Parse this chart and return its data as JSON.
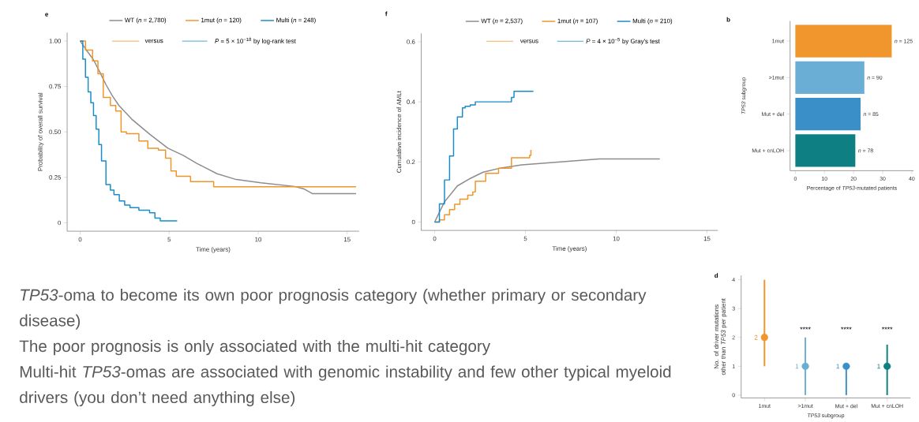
{
  "chart_data": [
    {
      "type": "step",
      "title": "e",
      "xlabel": "Time (years)",
      "ylabel": "Probability of overall survival",
      "legend": "top",
      "xlim": [
        -0.73,
        15.67
      ],
      "ylim": [
        -0.046,
        1.046
      ],
      "xticks": [
        0,
        5,
        10,
        15
      ],
      "yticks": [
        0,
        {
          "value": 0.25,
          "label": "0.25"
        },
        {
          "value": 0.5,
          "label": "0.50"
        },
        {
          "value": 0.75,
          "label": "0.75"
        },
        {
          "value": 1,
          "label": "1.00"
        }
      ],
      "annotations": [
        "versus",
        "*P* = 5 × 10$^{−18}$ by log-rank test"
      ],
      "series": [
        {
          "name": "WT (*n* = 2,780)",
          "color": "#8c8c8c",
          "type": "line",
          "x": [
            0,
            0.35,
            0.73,
            1.1,
            1.45,
            1.8,
            2.18,
            2.9,
            3.92,
            4.93,
            5.8,
            6.53,
            7.69,
            8.7,
            10.16,
            12.05,
            12.6,
            13.06,
            15.5
          ],
          "values": [
            1.0,
            0.95,
            0.9,
            0.83,
            0.76,
            0.7,
            0.645,
            0.57,
            0.486,
            0.41,
            0.37,
            0.328,
            0.27,
            0.24,
            0.22,
            0.2,
            0.185,
            0.16,
            0.16
          ]
        },
        {
          "name": "1mut (*n* = 120)",
          "color": "#f0952a",
          "x": [
            0,
            0.3,
            0.7,
            1.0,
            1.3,
            1.7,
            2.0,
            2.3,
            2.6,
            3.3,
            3.8,
            4.4,
            4.8,
            5.1,
            5.4,
            6.2,
            7.5,
            15.5
          ],
          "values": [
            1.0,
            0.95,
            0.89,
            0.82,
            0.69,
            0.645,
            0.615,
            0.5,
            0.49,
            0.45,
            0.41,
            0.4,
            0.356,
            0.285,
            0.256,
            0.227,
            0.198,
            0.198
          ]
        },
        {
          "name": "Multi (*n* = 248)",
          "color": "#1a8cc8",
          "x": [
            0,
            0.15,
            0.3,
            0.45,
            0.6,
            0.75,
            0.9,
            1.05,
            1.2,
            1.45,
            1.7,
            1.9,
            2.2,
            2.5,
            2.8,
            3.3,
            3.9,
            4.2,
            4.5,
            5.45
          ],
          "values": [
            1.0,
            0.9,
            0.8,
            0.72,
            0.66,
            0.59,
            0.515,
            0.43,
            0.34,
            0.21,
            0.18,
            0.155,
            0.12,
            0.098,
            0.083,
            0.069,
            0.055,
            0.026,
            0.011,
            0.011
          ]
        }
      ]
    },
    {
      "type": "step",
      "title": "f",
      "xlabel": "Time (years)",
      "ylabel": "Cumulative incidence of AMLt",
      "legend": "top",
      "xlim": [
        -0.74,
        15.6
      ],
      "ylim": [
        -0.028,
        0.628
      ],
      "xticks": [
        0,
        5,
        10,
        15
      ],
      "yticks": [
        0,
        0.2,
        0.4,
        0.6
      ],
      "annotations": [
        "versus",
        "*P* = 4 × 10$^{−5}$ by Gray's test"
      ],
      "series": [
        {
          "name": "WT (*n* = 2,537)",
          "color": "#8c8c8c",
          "type": "line",
          "x": [
            0,
            0.54,
            1.25,
            1.96,
            2.67,
            3.66,
            4.8,
            6.93,
            9.06,
            12.4
          ],
          "values": [
            0,
            0.067,
            0.12,
            0.145,
            0.166,
            0.18,
            0.19,
            0.2,
            0.21,
            0.21
          ]
        },
        {
          "name": "1mut (*n* = 107)",
          "color": "#f0952a",
          "x": [
            0,
            0.26,
            0.54,
            0.82,
            1.1,
            1.39,
            1.82,
            2.1,
            2.24,
            2.81,
            3.52,
            4.23,
            5.23,
            5.3
          ],
          "values": [
            0,
            0.007,
            0.024,
            0.041,
            0.059,
            0.076,
            0.089,
            0.1,
            0.136,
            0.162,
            0.179,
            0.214,
            0.222,
            0.24
          ]
        },
        {
          "name": "Multi (*n* = 210)",
          "color": "#1a8cc8",
          "x": [
            0,
            0.26,
            0.54,
            0.82,
            1.04,
            1.25,
            1.53,
            1.68,
            1.96,
            2.24,
            4.09,
            4.23,
            4.37,
            5.44
          ],
          "values": [
            0,
            0.06,
            0.14,
            0.22,
            0.31,
            0.35,
            0.38,
            0.385,
            0.39,
            0.4,
            0.4,
            0.415,
            0.435,
            0.435
          ]
        }
      ]
    },
    {
      "type": "bar",
      "title": "b",
      "orientation": "horizontal",
      "xlabel": "Percentage of *TP53*-mutated patients",
      "ylabel": "*TP53* subgroup",
      "categories": [
        "1mut",
        ">1mut",
        "Mut + del",
        "Mut + cnLOH"
      ],
      "values": [
        33.1,
        23.7,
        22.4,
        20.6
      ],
      "colors": [
        "#f0962c",
        "#6aaed6",
        "#3a8fc8",
        "#0e7f82"
      ],
      "annotations": [
        {
          "text": "*n* = 125",
          "x": 33.1,
          "y": "1mut"
        },
        {
          "text": "*n* = 90",
          "x": 23.7,
          "y": ">1mut"
        },
        {
          "text": "*n* = 85",
          "x": 22.4,
          "y": "Mut + del"
        },
        {
          "text": "*n* = 78",
          "x": 20.6,
          "y": "Mut + cnLOH"
        }
      ],
      "xlim": [
        -1.8,
        40.6
      ],
      "xticks": [
        0,
        10,
        20,
        30,
        40
      ]
    },
    {
      "type": "other",
      "annotations": [
        "*TP53*-oma to become its own poor prognosis category (whether primary or secondary disease)",
        "The poor prognosis is only associated with the multi-hit category",
        "Multi-hit *TP53*-omas are associated with genomic instability and few other typical myeloid drivers (you don’t need anything else)"
      ]
    },
    {
      "type": "scatter",
      "title": "d",
      "xlabel": "*TP53* subgroup",
      "ylabel": "No. of driver mutations other than *TP53* per patient",
      "marker": "circle",
      "categories": [
        "1mut",
        ">1mut",
        "Mut + del",
        "Mut + cnLOH"
      ],
      "values": [
        2,
        1,
        1,
        1
      ],
      "errors": [
        [
          1,
          4
        ],
        [
          0,
          2
        ],
        [
          0,
          1
        ],
        [
          0,
          1.75
        ]
      ],
      "colors": [
        "#f0962c",
        "#6aaed6",
        "#3a8fc8",
        "#0e7f82"
      ],
      "value_labels": [
        "2",
        "1",
        "1",
        "1"
      ],
      "ylim": [
        -0.1,
        4.15
      ],
      "yticks": [
        0,
        1,
        2,
        3,
        4
      ],
      "annotations": [
        "****",
        "****",
        "****"
      ]
    }
  ]
}
